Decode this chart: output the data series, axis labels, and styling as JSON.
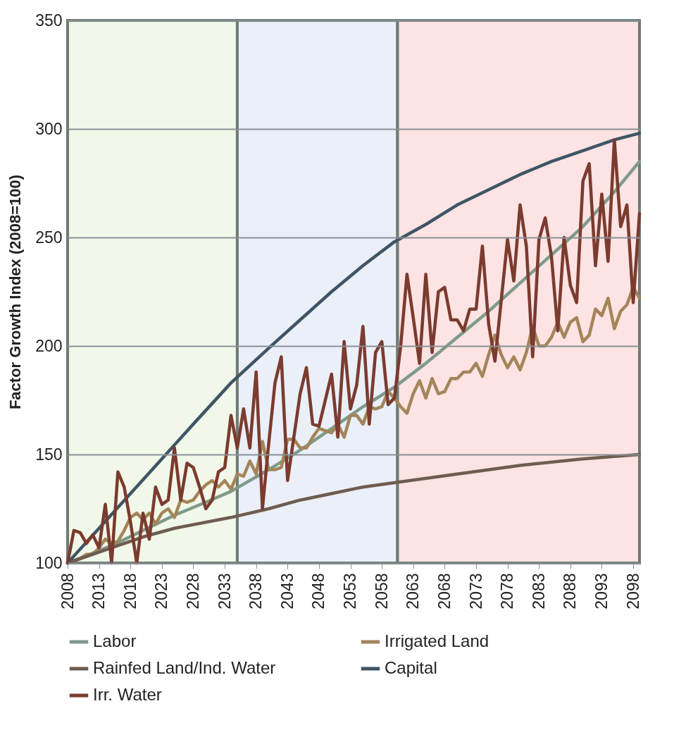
{
  "chart_data": {
    "type": "line",
    "ylabel": "Factor Growth Index (2008=100)",
    "x": [
      2008,
      2009,
      2010,
      2011,
      2012,
      2013,
      2014,
      2015,
      2016,
      2017,
      2018,
      2019,
      2020,
      2021,
      2022,
      2023,
      2024,
      2025,
      2026,
      2027,
      2028,
      2029,
      2030,
      2031,
      2032,
      2033,
      2034,
      2035,
      2036,
      2037,
      2038,
      2039,
      2040,
      2041,
      2042,
      2043,
      2044,
      2045,
      2046,
      2047,
      2048,
      2049,
      2050,
      2051,
      2052,
      2053,
      2054,
      2055,
      2056,
      2057,
      2058,
      2059,
      2060,
      2061,
      2062,
      2063,
      2064,
      2065,
      2066,
      2067,
      2068,
      2069,
      2070,
      2071,
      2072,
      2073,
      2074,
      2075,
      2076,
      2077,
      2078,
      2079,
      2080,
      2081,
      2082,
      2083,
      2084,
      2085,
      2086,
      2087,
      2088,
      2089,
      2090,
      2091,
      2092,
      2093,
      2094,
      2095,
      2096,
      2097,
      2098,
      2099
    ],
    "series": [
      {
        "name": "Labor",
        "color": "#7f9a8a",
        "x": [
          2008,
          2015,
          2020,
          2025,
          2030,
          2034,
          2040,
          2045,
          2050,
          2055,
          2060,
          2065,
          2070,
          2075,
          2080,
          2085,
          2090,
          2095,
          2099
        ],
        "values": [
          100,
          108,
          115,
          122,
          128,
          133,
          143,
          152,
          162,
          172,
          181,
          192,
          204,
          216,
          229,
          242,
          255,
          271,
          285
        ]
      },
      {
        "name": "Irrigated Land",
        "color": "#a3855a",
        "values": [
          100,
          101,
          102,
          104,
          104,
          107,
          111,
          109,
          110,
          115,
          121,
          123,
          120,
          123,
          118,
          123,
          125,
          121,
          129,
          128,
          129,
          133,
          136,
          138,
          135,
          138,
          134,
          141,
          140,
          147,
          141,
          156,
          143,
          143,
          144,
          157,
          157,
          153,
          153,
          158,
          162,
          161,
          160,
          164,
          158,
          168,
          168,
          164,
          172,
          171,
          172,
          179,
          176,
          172,
          169,
          178,
          184,
          176,
          185,
          178,
          179,
          185,
          185,
          188,
          188,
          192,
          186,
          196,
          205,
          196,
          190,
          195,
          189,
          197,
          209,
          200,
          200,
          204,
          211,
          204,
          211,
          213,
          202,
          205,
          217,
          214,
          222,
          208,
          216,
          219,
          227,
          222
        ]
      },
      {
        "name": "Rainfed Land/Ind. Water",
        "color": "#6e5c4f",
        "x": [
          2008,
          2015,
          2020,
          2025,
          2034,
          2040,
          2045,
          2050,
          2055,
          2060,
          2070,
          2080,
          2090,
          2099
        ],
        "values": [
          100,
          107,
          112,
          116,
          121,
          125,
          129,
          132,
          135,
          137,
          141,
          145,
          148,
          150
        ]
      },
      {
        "name": "Capital",
        "color": "#3f5566",
        "x": [
          2008,
          2013,
          2018,
          2023,
          2028,
          2034,
          2040,
          2045,
          2050,
          2055,
          2060,
          2065,
          2070,
          2075,
          2080,
          2085,
          2090,
          2095,
          2099
        ],
        "values": [
          100,
          116,
          132,
          148,
          164,
          183,
          199,
          212,
          225,
          237,
          248,
          256,
          265,
          272,
          279,
          285,
          290,
          295,
          298
        ]
      },
      {
        "name": "Irr. Water",
        "color": "#7b3b2f",
        "values": [
          100,
          115,
          114,
          109,
          113,
          107,
          127,
          100,
          142,
          135,
          119,
          100,
          123,
          111,
          135,
          127,
          129,
          153,
          129,
          146,
          144,
          135,
          125,
          129,
          142,
          144,
          168,
          153,
          171,
          153,
          188,
          125,
          155,
          183,
          195,
          138,
          158,
          178,
          190,
          164,
          163,
          175,
          187,
          158,
          202,
          171,
          182,
          209,
          164,
          197,
          202,
          173,
          176,
          200,
          233,
          213,
          192,
          233,
          197,
          225,
          227,
          212,
          212,
          207,
          217,
          217,
          246,
          210,
          193,
          221,
          249,
          230,
          265,
          246,
          195,
          249,
          259,
          241,
          207,
          250,
          228,
          220,
          276,
          284,
          237,
          270,
          239,
          295,
          255,
          265,
          220,
          261
        ]
      }
    ],
    "xlim": [
      2008,
      2099
    ],
    "xticks": [
      2008,
      2013,
      2018,
      2023,
      2028,
      2033,
      2038,
      2043,
      2048,
      2053,
      2058,
      2063,
      2068,
      2073,
      2078,
      2083,
      2088,
      2093,
      2098
    ],
    "ylim": [
      100,
      350
    ],
    "yticks": [
      100,
      150,
      200,
      250,
      300,
      350
    ],
    "bands": [
      {
        "axis": "x",
        "from": 2008,
        "to": 2035,
        "color": "#f1f8e9"
      },
      {
        "axis": "x",
        "from": 2035,
        "to": 2060.5,
        "color": "#eaeff8"
      },
      {
        "axis": "x",
        "from": 2060.5,
        "to": 2099,
        "color": "#fde3e3"
      }
    ],
    "grid": "y",
    "legend": "bottom",
    "line_style": "solid"
  }
}
